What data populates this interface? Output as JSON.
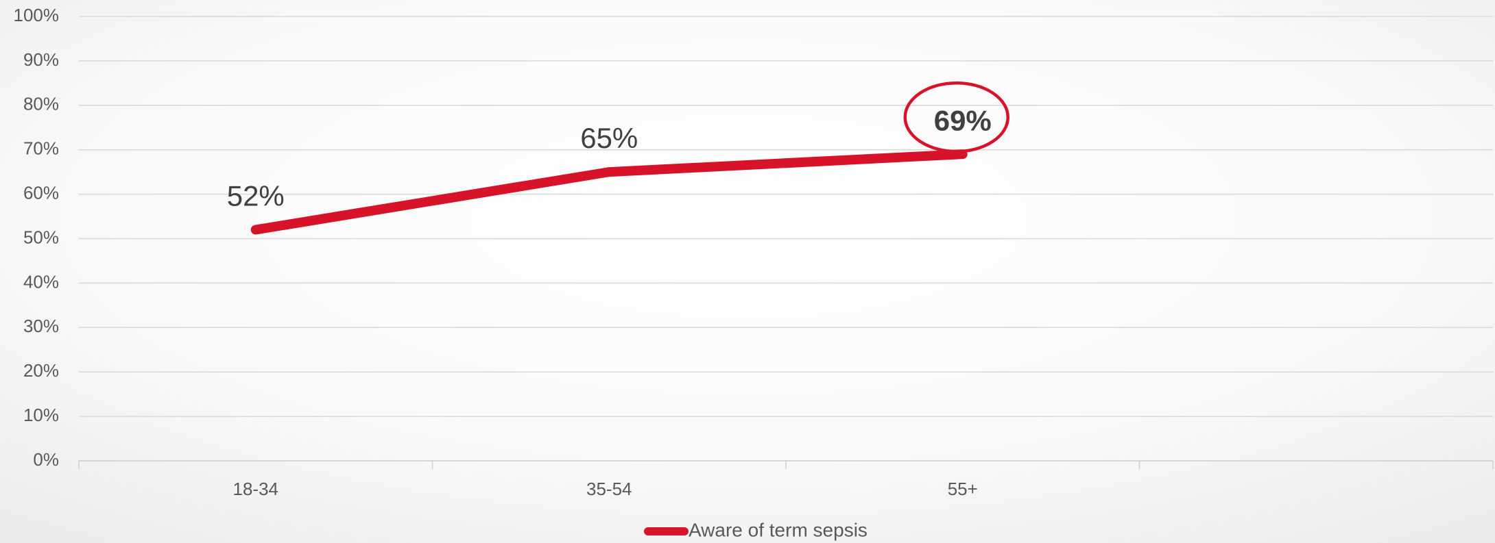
{
  "chart_data": {
    "type": "line",
    "categories": [
      "18-34",
      "35-54",
      "55+",
      null
    ],
    "series": [
      {
        "name": "Aware of term sepsis",
        "color": "#d71329",
        "values": [
          52,
          65,
          69,
          null
        ],
        "value_labels": [
          "52%",
          "65%",
          "69%",
          null
        ]
      }
    ],
    "ylim": [
      0,
      100
    ],
    "yticks": [
      {
        "value": 0,
        "label": "0%"
      },
      {
        "value": 10,
        "label": "10%"
      },
      {
        "value": 20,
        "label": "20%"
      },
      {
        "value": 30,
        "label": "30%"
      },
      {
        "value": 40,
        "label": "40%"
      },
      {
        "value": 50,
        "label": "50%"
      },
      {
        "value": 60,
        "label": "60%"
      },
      {
        "value": 70,
        "label": "70%"
      },
      {
        "value": 80,
        "label": "80%"
      },
      {
        "value": 90,
        "label": "90%"
      },
      {
        "value": 100,
        "label": "100%"
      }
    ],
    "grid": true,
    "legend": "bottom"
  }
}
